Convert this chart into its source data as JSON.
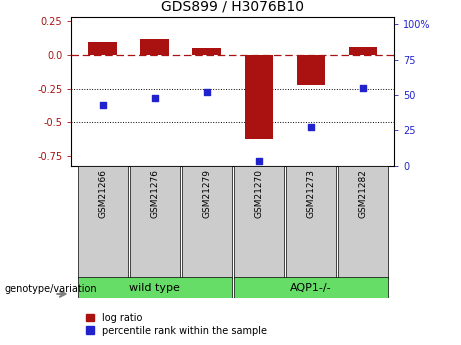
{
  "title": "GDS899 / H3076B10",
  "samples": [
    "GSM21266",
    "GSM21276",
    "GSM21279",
    "GSM21270",
    "GSM21273",
    "GSM21282"
  ],
  "log_ratio": [
    0.1,
    0.12,
    0.05,
    -0.62,
    -0.22,
    0.06
  ],
  "percentile_rank": [
    43,
    48,
    52,
    3,
    27,
    55
  ],
  "ylim_left": [
    -0.82,
    0.28
  ],
  "ylim_right": [
    0,
    105
  ],
  "yticks_left": [
    0.25,
    0.0,
    -0.25,
    -0.5,
    -0.75
  ],
  "yticks_right": [
    100,
    75,
    50,
    25,
    0
  ],
  "bar_color": "#aa1111",
  "scatter_color": "#2222cc",
  "dotted_lines": [
    -0.25,
    -0.5
  ],
  "wild_type_label": "wild type",
  "aqp1_label": "AQP1-/-",
  "genotype_label": "genotype/variation",
  "legend_log_ratio": "log ratio",
  "legend_percentile": "percentile rank within the sample",
  "group_color": "#66dd66",
  "sample_box_color": "#cccccc",
  "bar_width": 0.55,
  "title_fontsize": 10,
  "tick_fontsize": 7,
  "sample_fontsize": 6.5,
  "group_fontsize": 8,
  "legend_fontsize": 7,
  "genotype_fontsize": 7
}
